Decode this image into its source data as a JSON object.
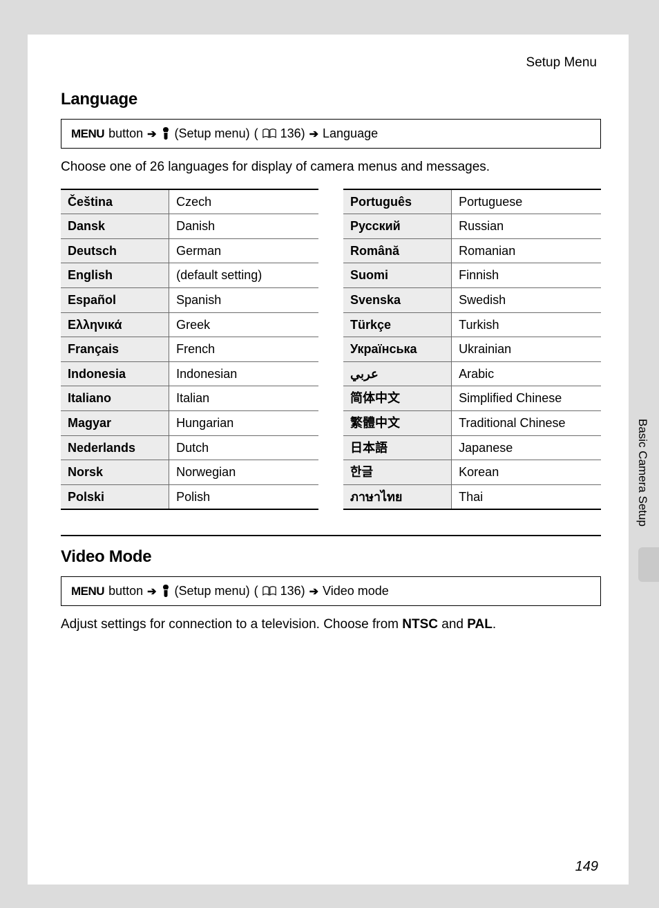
{
  "header": {
    "section_label": "Setup Menu"
  },
  "language_section": {
    "title": "Language",
    "nav": {
      "menu_label": "MENU",
      "button_word": "button",
      "setup_menu_label": "(Setup menu)",
      "page_ref": "136)",
      "target": "Language"
    },
    "intro": "Choose one of 26 languages for display of camera menus and messages.",
    "table_left": [
      {
        "native": "Čeština",
        "eng": "Czech"
      },
      {
        "native": "Dansk",
        "eng": "Danish"
      },
      {
        "native": "Deutsch",
        "eng": "German"
      },
      {
        "native": "English",
        "eng": "(default setting)"
      },
      {
        "native": "Español",
        "eng": "Spanish"
      },
      {
        "native": "Ελληνικά",
        "eng": "Greek"
      },
      {
        "native": "Français",
        "eng": "French"
      },
      {
        "native": "Indonesia",
        "eng": "Indonesian"
      },
      {
        "native": "Italiano",
        "eng": "Italian"
      },
      {
        "native": "Magyar",
        "eng": "Hungarian"
      },
      {
        "native": "Nederlands",
        "eng": "Dutch"
      },
      {
        "native": "Norsk",
        "eng": "Norwegian"
      },
      {
        "native": "Polski",
        "eng": "Polish"
      }
    ],
    "table_right": [
      {
        "native": "Português",
        "eng": "Portuguese"
      },
      {
        "native": "Русский",
        "eng": "Russian"
      },
      {
        "native": "Română",
        "eng": "Romanian"
      },
      {
        "native": "Suomi",
        "eng": "Finnish"
      },
      {
        "native": "Svenska",
        "eng": "Swedish"
      },
      {
        "native": "Türkçe",
        "eng": "Turkish"
      },
      {
        "native": "Українська",
        "eng": "Ukrainian"
      },
      {
        "native": "عربي",
        "eng": "Arabic"
      },
      {
        "native": "简体中文",
        "eng": "Simplified Chinese"
      },
      {
        "native": "繁體中文",
        "eng": "Traditional Chinese"
      },
      {
        "native": "日本語",
        "eng": "Japanese"
      },
      {
        "native": "한글",
        "eng": "Korean"
      },
      {
        "native": "ภาษาไทย",
        "eng": "Thai"
      }
    ]
  },
  "video_section": {
    "title": "Video Mode",
    "nav": {
      "menu_label": "MENU",
      "button_word": "button",
      "setup_menu_label": "(Setup menu)",
      "page_ref": "136)",
      "target": "Video mode"
    },
    "desc_pre": "Adjust settings for connection to a television. Choose from ",
    "opt1": "NTSC",
    "desc_mid": " and ",
    "opt2": "PAL",
    "desc_post": "."
  },
  "side_tab": {
    "label": "Basic Camera Setup"
  },
  "page_number": "149"
}
